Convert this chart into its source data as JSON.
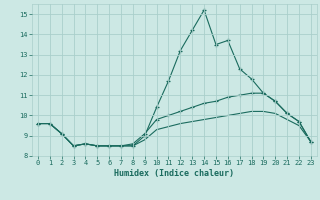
{
  "title": "",
  "xlabel": "Humidex (Indice chaleur)",
  "bg_color": "#cce8e4",
  "grid_color": "#aacfcb",
  "line_color": "#1a6b5e",
  "xlim": [
    -0.5,
    23.5
  ],
  "ylim": [
    8,
    15.5
  ],
  "xticks": [
    0,
    1,
    2,
    3,
    4,
    5,
    6,
    7,
    8,
    9,
    10,
    11,
    12,
    13,
    14,
    15,
    16,
    17,
    18,
    19,
    20,
    21,
    22,
    23
  ],
  "yticks": [
    8,
    9,
    10,
    11,
    12,
    13,
    14,
    15
  ],
  "line1_x": [
    0,
    1,
    2,
    3,
    4,
    5,
    6,
    7,
    8,
    9,
    10,
    11,
    12,
    13,
    14,
    15,
    16,
    17,
    18,
    19,
    20,
    21,
    22,
    23
  ],
  "line1_y": [
    9.6,
    9.6,
    9.1,
    8.5,
    8.6,
    8.5,
    8.5,
    8.5,
    8.5,
    9.0,
    10.4,
    11.7,
    13.2,
    14.2,
    15.2,
    13.5,
    13.7,
    12.3,
    11.8,
    11.1,
    10.7,
    10.1,
    9.7,
    8.7
  ],
  "line2_x": [
    0,
    1,
    2,
    3,
    4,
    5,
    6,
    7,
    8,
    9,
    10,
    11,
    12,
    13,
    14,
    15,
    16,
    17,
    18,
    19,
    20,
    21,
    22,
    23
  ],
  "line2_y": [
    9.6,
    9.6,
    9.1,
    8.5,
    8.6,
    8.5,
    8.5,
    8.5,
    8.6,
    9.1,
    9.8,
    10.0,
    10.2,
    10.4,
    10.6,
    10.7,
    10.9,
    11.0,
    11.1,
    11.1,
    10.7,
    10.1,
    9.7,
    8.7
  ],
  "line3_x": [
    0,
    1,
    2,
    3,
    4,
    5,
    6,
    7,
    8,
    9,
    10,
    11,
    12,
    13,
    14,
    15,
    16,
    17,
    18,
    19,
    20,
    21,
    22,
    23
  ],
  "line3_y": [
    9.6,
    9.6,
    9.1,
    8.5,
    8.6,
    8.5,
    8.5,
    8.5,
    8.5,
    8.8,
    9.3,
    9.45,
    9.6,
    9.7,
    9.8,
    9.9,
    10.0,
    10.1,
    10.2,
    10.2,
    10.1,
    9.8,
    9.5,
    8.7
  ]
}
